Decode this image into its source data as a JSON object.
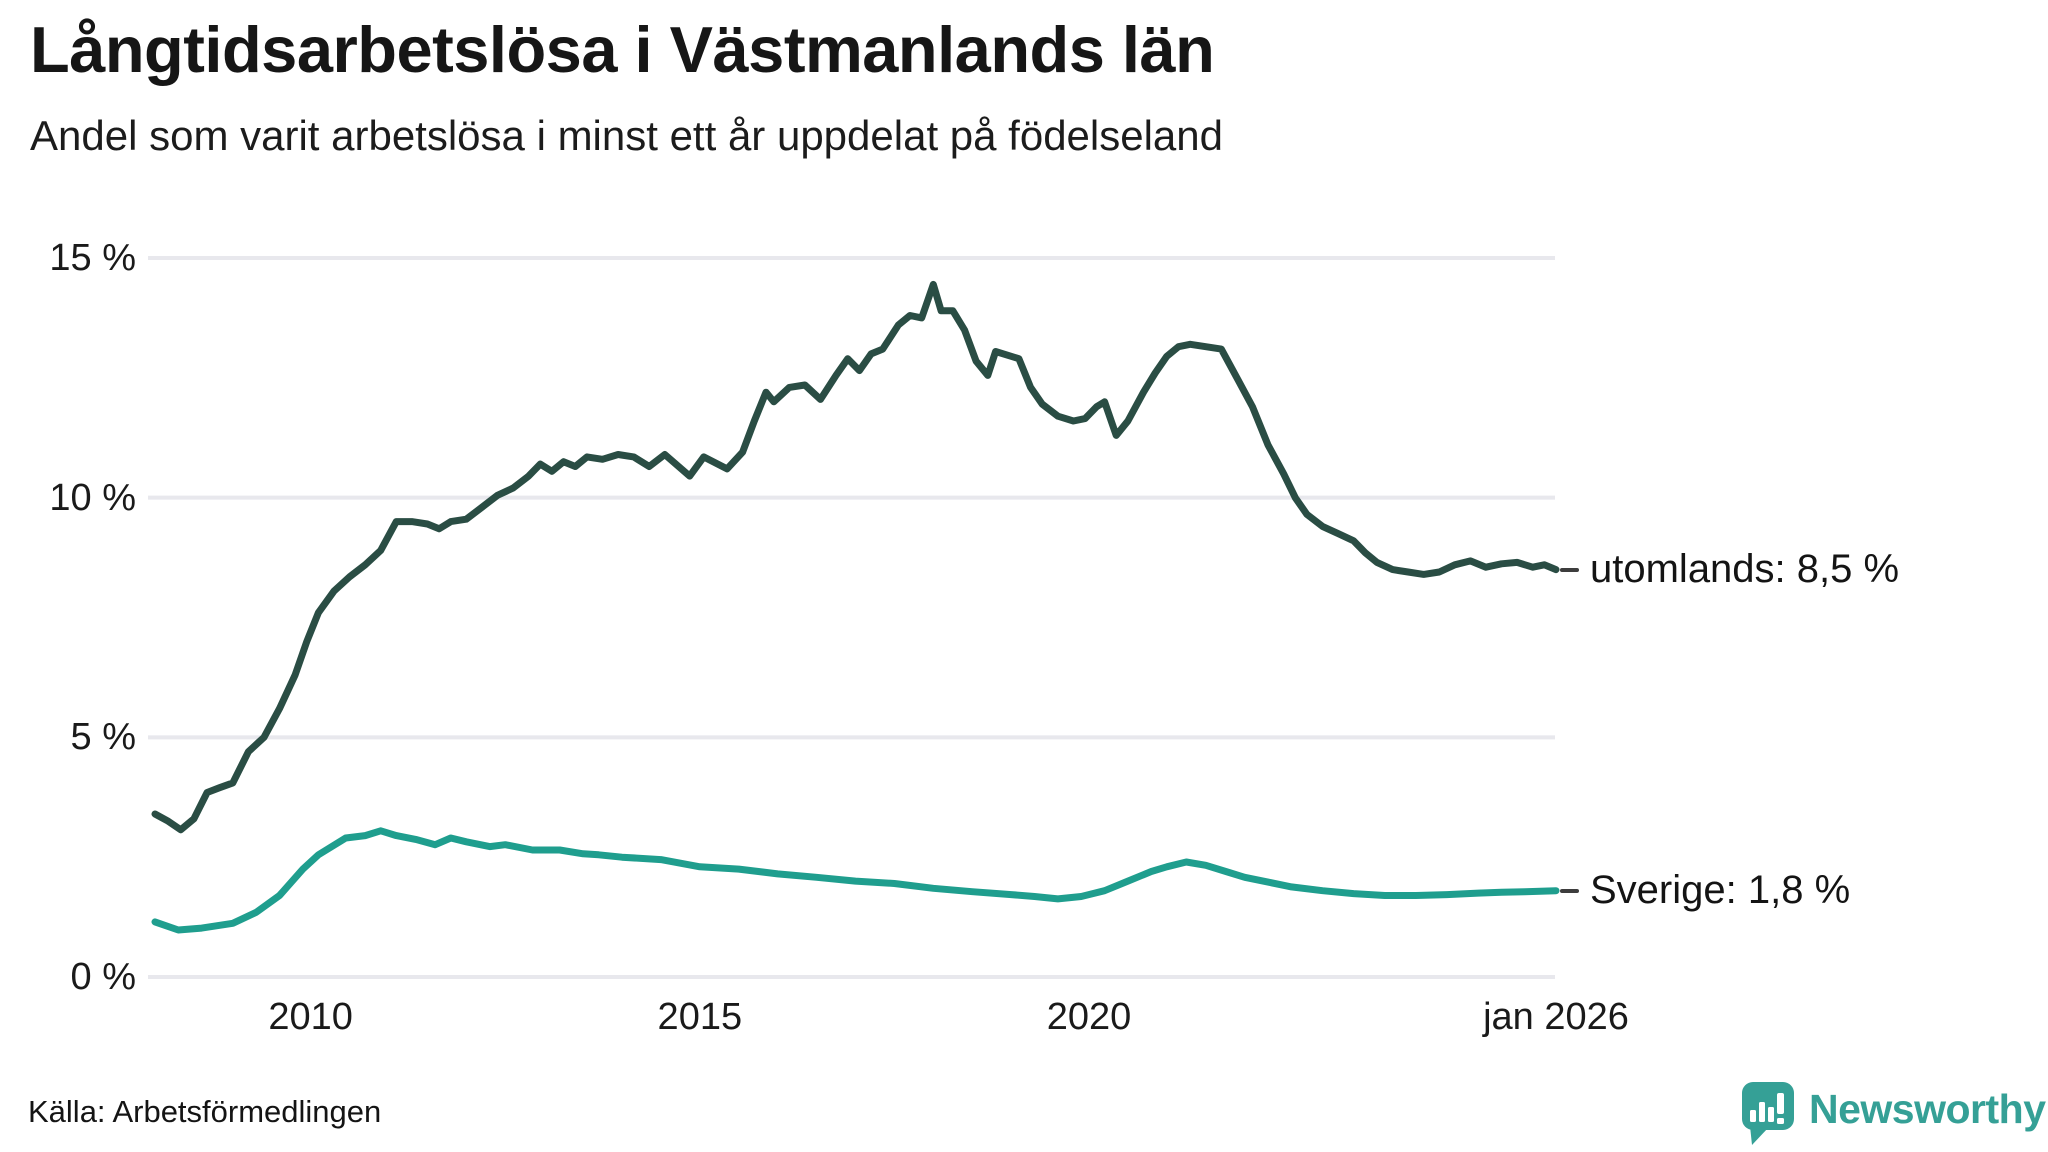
{
  "chart_data": {
    "type": "line",
    "title": "Långtidsarbetslösa i Västmanlands län",
    "subtitle": "Andel som varit arbetslösa i minst ett år uppdelat på födelseland",
    "xlabel": "",
    "ylabel": "",
    "xlim": [
      2008,
      2026
    ],
    "ylim": [
      0,
      15
    ],
    "grid": "horizontal-only",
    "gridline_color": "#e8e8ed",
    "background_color": "#ffffff",
    "legend_position": "end-of-line-labels",
    "y_ticks": [
      {
        "value": 15,
        "label": "15 %"
      },
      {
        "value": 10,
        "label": "10 %"
      },
      {
        "value": 5,
        "label": "5 %"
      },
      {
        "value": 0,
        "label": "0 %"
      }
    ],
    "x_ticks": [
      {
        "value": 2010,
        "label": "2010"
      },
      {
        "value": 2015,
        "label": "2015"
      },
      {
        "value": 2020,
        "label": "2020"
      },
      {
        "value": 2026,
        "label": "jan 2026"
      }
    ],
    "series": [
      {
        "name": "utomlands",
        "label": "utomlands: 8,5 %",
        "end_value": 8.5,
        "color": "#2a4d44",
        "points": [
          [
            2008.0,
            3.4
          ],
          [
            2008.17,
            3.25
          ],
          [
            2008.33,
            3.07
          ],
          [
            2008.5,
            3.3
          ],
          [
            2008.67,
            3.85
          ],
          [
            2008.83,
            3.95
          ],
          [
            2009.0,
            4.05
          ],
          [
            2009.2,
            4.7
          ],
          [
            2009.4,
            5.0
          ],
          [
            2009.6,
            5.6
          ],
          [
            2009.8,
            6.3
          ],
          [
            2009.95,
            7.0
          ],
          [
            2010.1,
            7.6
          ],
          [
            2010.3,
            8.05
          ],
          [
            2010.5,
            8.35
          ],
          [
            2010.7,
            8.6
          ],
          [
            2010.9,
            8.9
          ],
          [
            2011.1,
            9.5
          ],
          [
            2011.3,
            9.5
          ],
          [
            2011.5,
            9.45
          ],
          [
            2011.65,
            9.35
          ],
          [
            2011.8,
            9.5
          ],
          [
            2012.0,
            9.55
          ],
          [
            2012.2,
            9.8
          ],
          [
            2012.4,
            10.05
          ],
          [
            2012.6,
            10.2
          ],
          [
            2012.8,
            10.45
          ],
          [
            2012.95,
            10.7
          ],
          [
            2013.1,
            10.55
          ],
          [
            2013.25,
            10.75
          ],
          [
            2013.4,
            10.65
          ],
          [
            2013.55,
            10.85
          ],
          [
            2013.75,
            10.8
          ],
          [
            2013.95,
            10.9
          ],
          [
            2014.15,
            10.85
          ],
          [
            2014.35,
            10.65
          ],
          [
            2014.55,
            10.9
          ],
          [
            2014.87,
            10.45
          ],
          [
            2015.05,
            10.85
          ],
          [
            2015.35,
            10.6
          ],
          [
            2015.55,
            10.95
          ],
          [
            2015.7,
            11.6
          ],
          [
            2015.85,
            12.2
          ],
          [
            2015.95,
            12.0
          ],
          [
            2016.15,
            12.3
          ],
          [
            2016.35,
            12.35
          ],
          [
            2016.55,
            12.05
          ],
          [
            2016.75,
            12.55
          ],
          [
            2016.9,
            12.9
          ],
          [
            2017.05,
            12.65
          ],
          [
            2017.2,
            13.0
          ],
          [
            2017.35,
            13.1
          ],
          [
            2017.55,
            13.6
          ],
          [
            2017.7,
            13.8
          ],
          [
            2017.85,
            13.75
          ],
          [
            2018.0,
            14.45
          ],
          [
            2018.1,
            13.9
          ],
          [
            2018.25,
            13.9
          ],
          [
            2018.4,
            13.5
          ],
          [
            2018.55,
            12.85
          ],
          [
            2018.7,
            12.55
          ],
          [
            2018.8,
            13.05
          ],
          [
            2019.0,
            12.95
          ],
          [
            2019.1,
            12.9
          ],
          [
            2019.25,
            12.3
          ],
          [
            2019.4,
            11.95
          ],
          [
            2019.6,
            11.7
          ],
          [
            2019.8,
            11.6
          ],
          [
            2019.95,
            11.65
          ],
          [
            2020.1,
            11.9
          ],
          [
            2020.2,
            12.0
          ],
          [
            2020.35,
            11.3
          ],
          [
            2020.5,
            11.6
          ],
          [
            2020.7,
            12.2
          ],
          [
            2020.85,
            12.6
          ],
          [
            2021.0,
            12.95
          ],
          [
            2021.15,
            13.15
          ],
          [
            2021.3,
            13.2
          ],
          [
            2021.5,
            13.15
          ],
          [
            2021.7,
            13.1
          ],
          [
            2021.9,
            12.5
          ],
          [
            2022.1,
            11.9
          ],
          [
            2022.3,
            11.1
          ],
          [
            2022.5,
            10.5
          ],
          [
            2022.65,
            10.0
          ],
          [
            2022.8,
            9.65
          ],
          [
            2023.0,
            9.4
          ],
          [
            2023.2,
            9.25
          ],
          [
            2023.4,
            9.1
          ],
          [
            2023.55,
            8.85
          ],
          [
            2023.7,
            8.65
          ],
          [
            2023.9,
            8.5
          ],
          [
            2024.1,
            8.45
          ],
          [
            2024.3,
            8.4
          ],
          [
            2024.5,
            8.45
          ],
          [
            2024.7,
            8.6
          ],
          [
            2024.9,
            8.68
          ],
          [
            2025.1,
            8.55
          ],
          [
            2025.3,
            8.62
          ],
          [
            2025.5,
            8.65
          ],
          [
            2025.7,
            8.55
          ],
          [
            2025.85,
            8.6
          ],
          [
            2026.0,
            8.5
          ]
        ]
      },
      {
        "name": "Sverige",
        "label": "Sverige: 1,8 %",
        "end_value": 1.8,
        "color": "#1f9e8e",
        "points": [
          [
            2008.0,
            1.15
          ],
          [
            2008.3,
            0.98
          ],
          [
            2008.6,
            1.02
          ],
          [
            2009.0,
            1.12
          ],
          [
            2009.3,
            1.35
          ],
          [
            2009.6,
            1.7
          ],
          [
            2009.9,
            2.25
          ],
          [
            2010.1,
            2.55
          ],
          [
            2010.45,
            2.9
          ],
          [
            2010.7,
            2.95
          ],
          [
            2010.9,
            3.05
          ],
          [
            2011.1,
            2.95
          ],
          [
            2011.35,
            2.87
          ],
          [
            2011.6,
            2.76
          ],
          [
            2011.8,
            2.9
          ],
          [
            2012.0,
            2.82
          ],
          [
            2012.3,
            2.72
          ],
          [
            2012.5,
            2.76
          ],
          [
            2012.85,
            2.65
          ],
          [
            2013.2,
            2.65
          ],
          [
            2013.5,
            2.57
          ],
          [
            2013.7,
            2.55
          ],
          [
            2014.0,
            2.5
          ],
          [
            2014.5,
            2.45
          ],
          [
            2015.0,
            2.3
          ],
          [
            2015.5,
            2.25
          ],
          [
            2016.0,
            2.15
          ],
          [
            2016.5,
            2.08
          ],
          [
            2017.0,
            2.0
          ],
          [
            2017.5,
            1.95
          ],
          [
            2018.0,
            1.85
          ],
          [
            2018.5,
            1.78
          ],
          [
            2019.0,
            1.72
          ],
          [
            2019.3,
            1.68
          ],
          [
            2019.6,
            1.63
          ],
          [
            2019.9,
            1.68
          ],
          [
            2020.2,
            1.8
          ],
          [
            2020.5,
            2.0
          ],
          [
            2020.8,
            2.2
          ],
          [
            2021.0,
            2.3
          ],
          [
            2021.25,
            2.4
          ],
          [
            2021.5,
            2.33
          ],
          [
            2021.8,
            2.18
          ],
          [
            2022.0,
            2.08
          ],
          [
            2022.3,
            1.98
          ],
          [
            2022.6,
            1.88
          ],
          [
            2023.0,
            1.8
          ],
          [
            2023.4,
            1.74
          ],
          [
            2023.8,
            1.7
          ],
          [
            2024.2,
            1.7
          ],
          [
            2024.6,
            1.72
          ],
          [
            2025.0,
            1.75
          ],
          [
            2025.3,
            1.77
          ],
          [
            2025.6,
            1.78
          ],
          [
            2026.0,
            1.8
          ]
        ]
      }
    ]
  },
  "source": {
    "label": "Källa: Arbetsförmedlingen"
  },
  "brand": {
    "name": "Newsworthy",
    "color": "#35a096"
  }
}
